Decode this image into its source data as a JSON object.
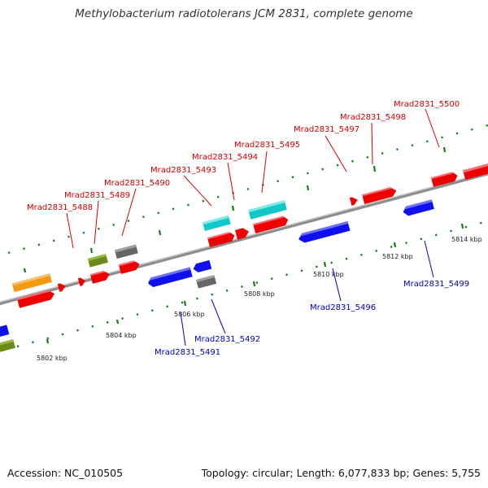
{
  "title": "Methylobacterium radiotolerans JCM 2831, complete genome",
  "footer": {
    "accession": "Accession: NC_010505",
    "topology": "Topology: circular; Length: 6,077,833 bp; Genes: 5,755"
  },
  "colors": {
    "forward_label": "#d40000",
    "reverse_label": "#0000c8",
    "backbone": "#888888",
    "tick": "#1b7a1b",
    "red": "#ee0000",
    "blue": "#1010ee",
    "cyan": "#10c8c8",
    "green": "#6a8a1a",
    "gray": "#666666",
    "orange": "#f39a10"
  },
  "kbp_labels": [
    "5802 kbp",
    "5804 kbp",
    "5806 kbp",
    "5808 kbp",
    "5810 kbp",
    "5812 kbp",
    "5814 kbp"
  ],
  "forward_labels": [
    "Mrad2831_5488",
    "Mrad2831_5489",
    "Mrad2831_5490",
    "Mrad2831_5493",
    "Mrad2831_5494",
    "Mrad2831_5495",
    "Mrad2831_5497",
    "Mrad2831_5498",
    "Mrad2831_5500"
  ],
  "reverse_labels": [
    "Mrad2831_5491",
    "Mrad2831_5492",
    "Mrad2831_5496",
    "Mrad2831_5499"
  ]
}
